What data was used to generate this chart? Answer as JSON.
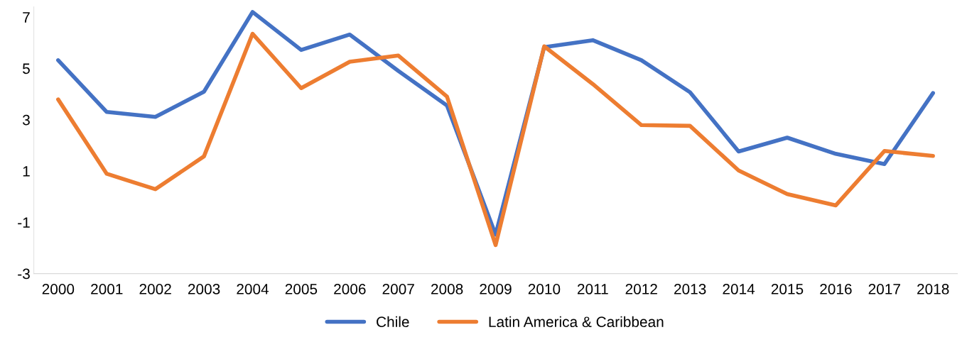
{
  "chart_data": {
    "type": "line",
    "categories": [
      "2000",
      "2001",
      "2002",
      "2003",
      "2004",
      "2005",
      "2006",
      "2007",
      "2008",
      "2009",
      "2010",
      "2011",
      "2012",
      "2013",
      "2014",
      "2015",
      "2016",
      "2017",
      "2018"
    ],
    "series": [
      {
        "name": "Chile",
        "color": "#4472c4",
        "values": [
          5.32,
          3.3,
          3.11,
          4.09,
          7.2,
          5.72,
          6.32,
          4.9,
          3.55,
          -1.48,
          5.83,
          6.1,
          5.32,
          4.07,
          1.76,
          2.3,
          1.67,
          1.27,
          4.04
        ]
      },
      {
        "name": "Latin America & Caribbean",
        "color": "#ed7d31",
        "values": [
          3.79,
          0.89,
          0.29,
          1.57,
          6.35,
          4.23,
          5.26,
          5.5,
          3.9,
          -1.89,
          5.86,
          4.39,
          2.79,
          2.76,
          1.02,
          0.1,
          -0.34,
          1.78,
          1.59
        ]
      }
    ],
    "ylim": [
      -3,
      7.4
    ],
    "yticks": [
      -3,
      -1,
      1,
      3,
      5,
      7
    ],
    "grid": false,
    "legend": "bottom",
    "marker": "none",
    "line_style": "solid"
  }
}
